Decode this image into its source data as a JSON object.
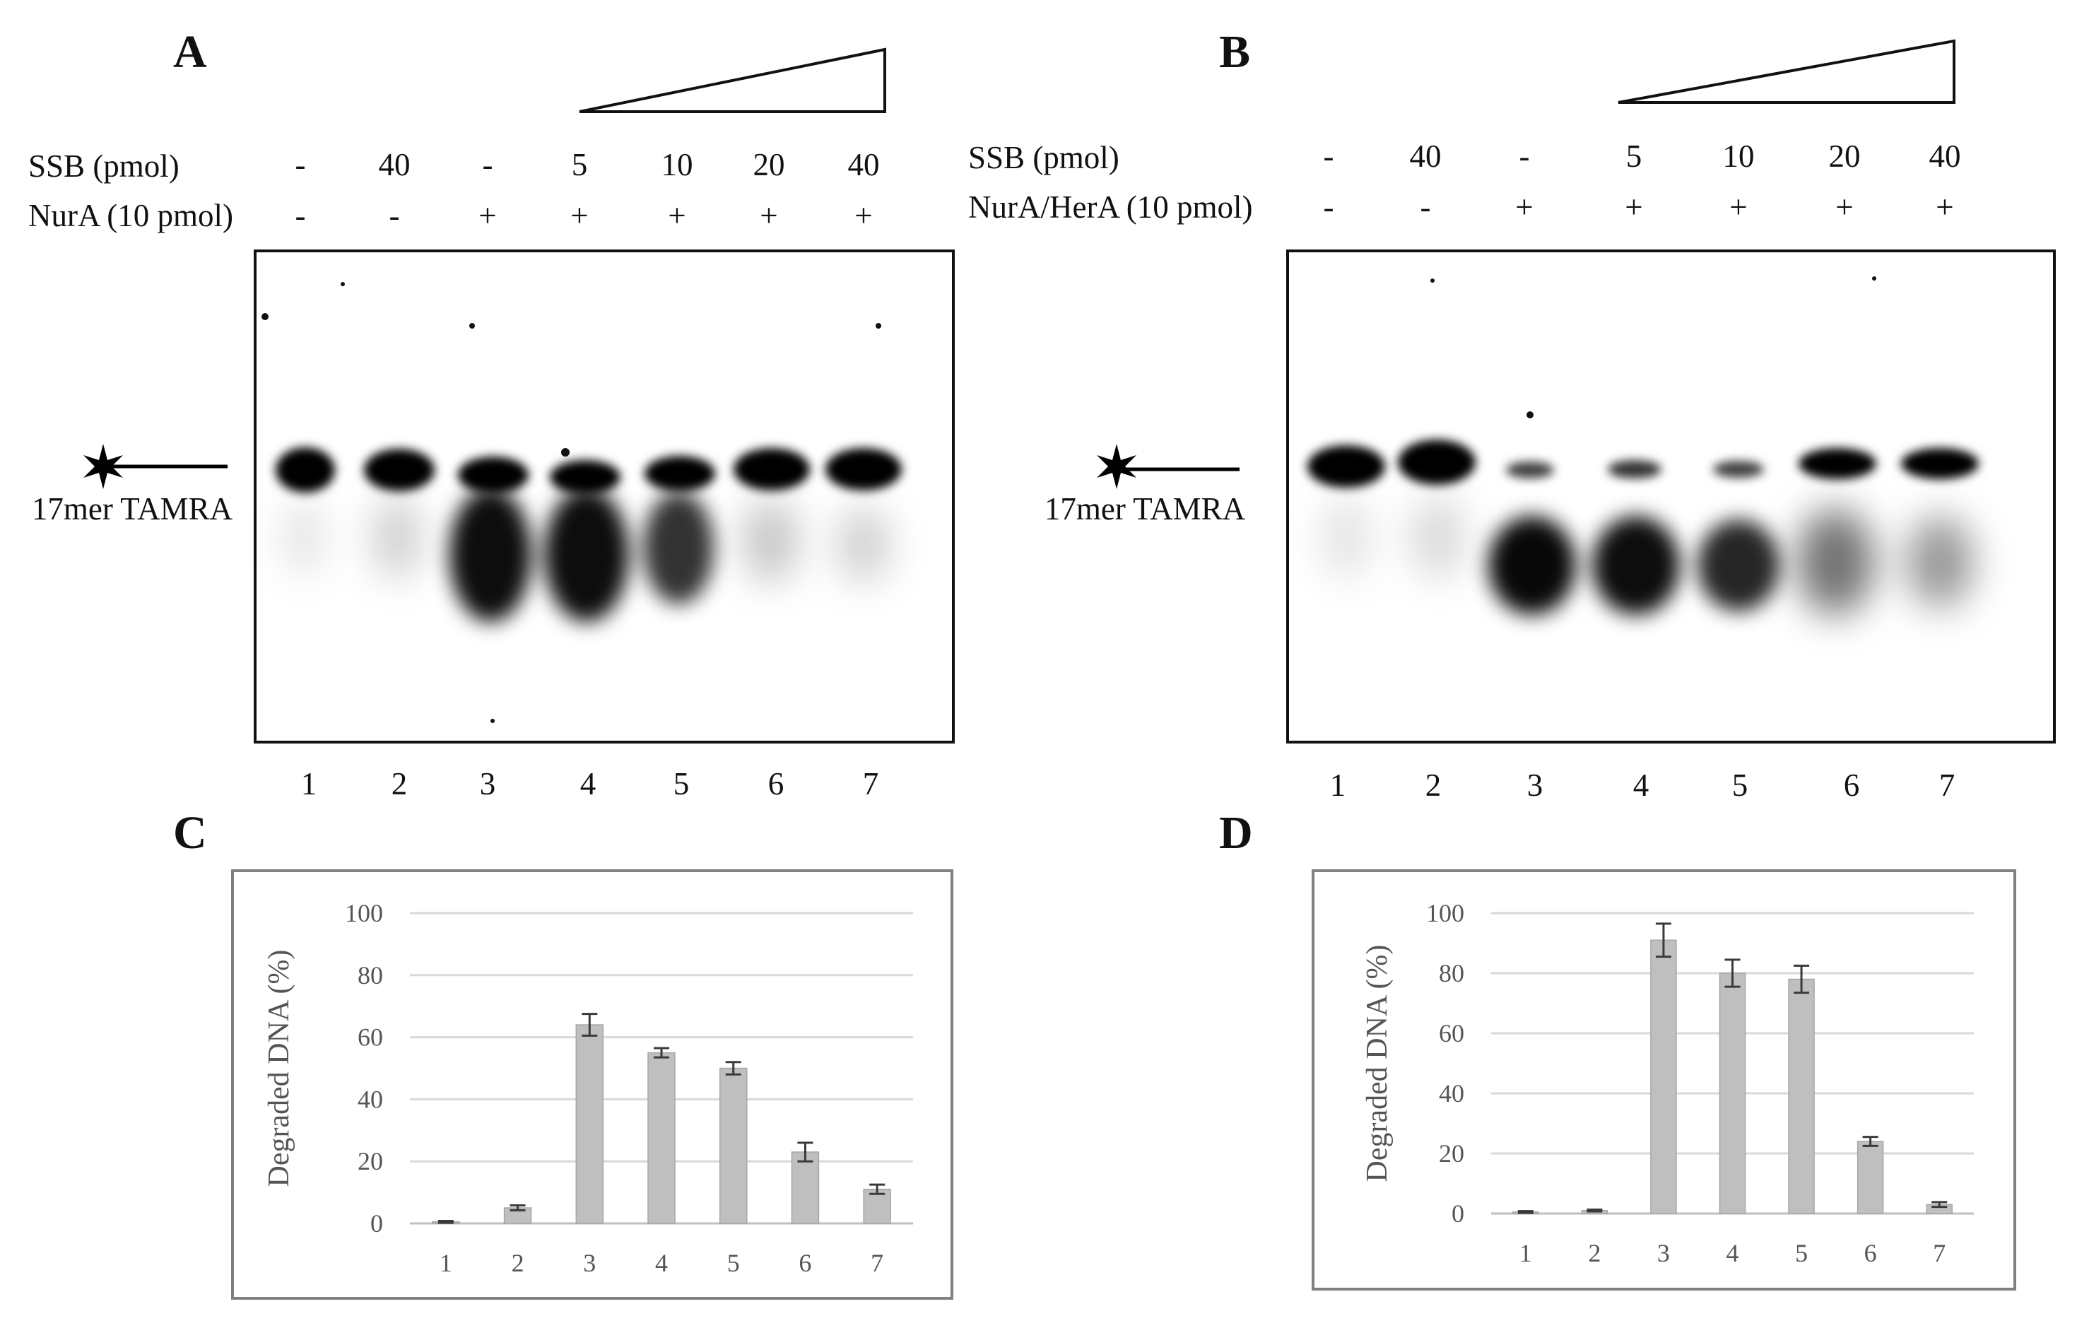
{
  "figure": {
    "panel_a": {
      "letter": "A",
      "row1_label": "SSB (pmol)",
      "row2_label": "NurA (10 pmol)",
      "ssb": [
        "-",
        "40",
        "-",
        "5",
        "10",
        "20",
        "40"
      ],
      "enzyme": [
        "-",
        "-",
        "+",
        "+",
        "+",
        "+",
        "+"
      ],
      "lanes": [
        "1",
        "2",
        "3",
        "4",
        "5",
        "6",
        "7"
      ],
      "marker_label": "17mer TAMRA"
    },
    "panel_b": {
      "letter": "B",
      "row1_label": "SSB (pmol)",
      "row2_label": "NurA/HerA (10 pmol)",
      "ssb": [
        "-",
        "40",
        "-",
        "5",
        "10",
        "20",
        "40"
      ],
      "enzyme": [
        "-",
        "-",
        "+",
        "+",
        "+",
        "+",
        "+"
      ],
      "lanes": [
        "1",
        "2",
        "3",
        "4",
        "5",
        "6",
        "7"
      ],
      "marker_label": "17mer TAMRA"
    },
    "panel_c": {
      "letter": "C"
    },
    "panel_d": {
      "letter": "D"
    }
  },
  "chart_data": [
    {
      "panel": "C",
      "type": "bar",
      "categories": [
        "1",
        "2",
        "3",
        "4",
        "5",
        "6",
        "7"
      ],
      "values": [
        0.5,
        5,
        64,
        55,
        50,
        23,
        11
      ],
      "errors": [
        0.3,
        0.8,
        3.5,
        1.5,
        2,
        3,
        1.5
      ],
      "ylabel": "Degraded DNA (%)",
      "xlabel": "",
      "ylim": [
        0,
        100
      ],
      "yticks": [
        "0",
        "20",
        "40",
        "60",
        "80",
        "100"
      ],
      "bar_color": "#bfbfbf",
      "grid": true
    },
    {
      "panel": "D",
      "type": "bar",
      "categories": [
        "1",
        "2",
        "3",
        "4",
        "5",
        "6",
        "7"
      ],
      "values": [
        0.5,
        1,
        91,
        80,
        78,
        24,
        3
      ],
      "errors": [
        0.3,
        0.3,
        5.5,
        4.5,
        4.5,
        1.5,
        0.8
      ],
      "ylabel": "Degraded DNA (%)",
      "xlabel": "",
      "ylim": [
        0,
        100
      ],
      "yticks": [
        "0",
        "20",
        "40",
        "60",
        "80",
        "100"
      ],
      "bar_color": "#bfbfbf",
      "grid": true
    }
  ]
}
